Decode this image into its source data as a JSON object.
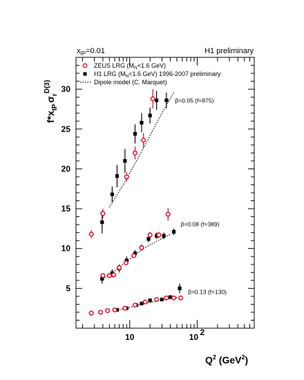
{
  "chart_data": {
    "type": "scatter",
    "header_left": "x_IP=0.01",
    "header_left_main": "x",
    "header_left_sub": "IP",
    "header_left_rest": "=0.01",
    "header_right": "H1 preliminary",
    "xlabel": "Q² (GeV²)",
    "xlabel_main": "Q",
    "xlabel_units_open": " (GeV",
    "xlabel_units_close": ")",
    "xlabel_sup": "2",
    "ylabel": "f*x_IP σ_r^D(3)",
    "ylabel_f": "f*x",
    "ylabel_sub": "IP",
    "ylabel_sigma": "σ",
    "ylabel_sub2": "r",
    "ylabel_sup": "D(3)",
    "x_scale": "log",
    "xlim": [
      1.6,
      700
    ],
    "ylim": [
      0,
      34
    ],
    "x_tick_labels": [
      "10",
      "10"
    ],
    "x_tick_sup": "2",
    "y_ticks": [
      5,
      10,
      15,
      20,
      25,
      30
    ],
    "grid": false,
    "legend_position": "top-left",
    "legend": [
      {
        "label": "ZEUS LRG (M_N<1.6 GeV)",
        "label_main": "ZEUS LRG (M",
        "label_sub": "N",
        "label_rest": "<1.6 GeV)",
        "marker": "open-circle",
        "color": "#e8001c"
      },
      {
        "label": "H1 LRG (M_N<1.6 GeV) 1996-2007 preliminary",
        "label_main": "H1 LRG (M",
        "label_sub": "N",
        "label_rest": "<1.6 GeV) 1996-2007 preliminary",
        "marker": "filled-square",
        "color": "#000000"
      },
      {
        "label": "Dipole model (C. Marquet)",
        "marker": "dotted-line",
        "color": "#000000"
      }
    ],
    "annotations": [
      {
        "text": "β=0.05 (f=875)",
        "x": 47,
        "y": 28.3
      },
      {
        "text": "β=0.08 (f=389)",
        "x": 57,
        "y": 12.8
      },
      {
        "text": "β=0.13 (f=130)",
        "x": 73,
        "y": 4.3
      }
    ],
    "series": [
      {
        "name": "ZEUS LRG (M_N<1.6 GeV)",
        "group": "β=0.05",
        "marker": "open-circle",
        "color": "#e8001c",
        "points": [
          {
            "x": 2.7,
            "y": 11.8,
            "err": 0.5
          },
          {
            "x": 4.0,
            "y": 14.4,
            "err": 0.6
          },
          {
            "x": 9.0,
            "y": 19.0,
            "err": 0.6
          },
          {
            "x": 12.0,
            "y": 22.0,
            "err": 0.8
          },
          {
            "x": 16.0,
            "y": 23.6,
            "err": 0.9
          },
          {
            "x": 22.0,
            "y": 28.8,
            "err": 1.2
          }
        ]
      },
      {
        "name": "H1 LRG (M_N<1.6 GeV) 1996-2007 preliminary",
        "group": "β=0.05",
        "marker": "filled-square",
        "color": "#000000",
        "points": [
          {
            "x": 3.9,
            "y": 13.3,
            "err": 1.4
          },
          {
            "x": 5.5,
            "y": 16.8,
            "err": 1.0
          },
          {
            "x": 6.5,
            "y": 19.1,
            "err": 1.4
          },
          {
            "x": 8.5,
            "y": 21.0,
            "err": 1.5
          },
          {
            "x": 12.0,
            "y": 24.4,
            "err": 1.2
          },
          {
            "x": 15.0,
            "y": 25.8,
            "err": 1.2
          },
          {
            "x": 20.0,
            "y": 26.7,
            "err": 1.0
          },
          {
            "x": 25.0,
            "y": 28.6,
            "err": 1.2
          },
          {
            "x": 35.0,
            "y": 28.6,
            "err": 1.0
          }
        ]
      },
      {
        "name": "Dipole model (C. Marquet)",
        "group": "β=0.05",
        "marker": "dotted-line",
        "color": "#000000",
        "points": [
          {
            "x": 5.0,
            "y": 15.2
          },
          {
            "x": 8.0,
            "y": 18.0
          },
          {
            "x": 13.0,
            "y": 21.2
          },
          {
            "x": 20.0,
            "y": 24.2
          },
          {
            "x": 30.0,
            "y": 27.0
          },
          {
            "x": 45.0,
            "y": 29.6
          }
        ]
      },
      {
        "name": "ZEUS LRG (M_N<1.6 GeV)",
        "group": "β=0.08",
        "marker": "open-circle",
        "color": "#e8001c",
        "points": [
          {
            "x": 4.0,
            "y": 6.6,
            "err": 0.3
          },
          {
            "x": 5.0,
            "y": 6.6,
            "err": 0.3
          },
          {
            "x": 5.8,
            "y": 6.7,
            "err": 0.3
          },
          {
            "x": 7.0,
            "y": 7.6,
            "err": 0.3
          },
          {
            "x": 8.8,
            "y": 8.2,
            "err": 0.3
          },
          {
            "x": 11.5,
            "y": 9.1,
            "err": 0.3
          },
          {
            "x": 15.0,
            "y": 10.1,
            "err": 0.3
          },
          {
            "x": 20.0,
            "y": 11.7,
            "err": 0.4
          },
          {
            "x": 27.0,
            "y": 11.7,
            "err": 0.4
          },
          {
            "x": 37.0,
            "y": 14.3,
            "err": 0.8
          }
        ]
      },
      {
        "name": "H1 LRG (M_N<1.6 GeV) 1996-2007 preliminary",
        "group": "β=0.08",
        "marker": "filled-square",
        "color": "#000000",
        "points": [
          {
            "x": 3.9,
            "y": 6.2,
            "err": 0.6
          },
          {
            "x": 5.5,
            "y": 6.9,
            "err": 0.5
          },
          {
            "x": 7.0,
            "y": 7.5,
            "err": 0.5
          },
          {
            "x": 9.0,
            "y": 8.5,
            "err": 0.5
          },
          {
            "x": 12.0,
            "y": 9.4,
            "err": 0.4
          },
          {
            "x": 15.0,
            "y": 10.1,
            "err": 0.4
          },
          {
            "x": 19.0,
            "y": 11.2,
            "err": 0.4
          },
          {
            "x": 25.0,
            "y": 11.6,
            "err": 0.4
          },
          {
            "x": 32.0,
            "y": 11.6,
            "err": 0.4
          },
          {
            "x": 45.0,
            "y": 12.1,
            "err": 0.4
          }
        ]
      },
      {
        "name": "Dipole model (C. Marquet)",
        "group": "β=0.08",
        "marker": "dotted-line",
        "color": "#000000",
        "points": [
          {
            "x": 3.7,
            "y": 6.0
          },
          {
            "x": 6.0,
            "y": 7.2
          },
          {
            "x": 10.0,
            "y": 8.7
          },
          {
            "x": 16.0,
            "y": 10.0
          },
          {
            "x": 25.0,
            "y": 10.9
          },
          {
            "x": 40.0,
            "y": 11.8
          }
        ]
      },
      {
        "name": "ZEUS LRG (M_N<1.6 GeV)",
        "group": "β=0.13",
        "marker": "open-circle",
        "color": "#e8001c",
        "points": [
          {
            "x": 2.7,
            "y": 1.9,
            "err": 0.1
          },
          {
            "x": 3.7,
            "y": 2.0,
            "err": 0.1
          },
          {
            "x": 4.7,
            "y": 2.2,
            "err": 0.1
          },
          {
            "x": 6.0,
            "y": 2.3,
            "err": 0.1
          },
          {
            "x": 8.5,
            "y": 2.5,
            "err": 0.1
          },
          {
            "x": 12.0,
            "y": 2.9,
            "err": 0.1
          },
          {
            "x": 17.0,
            "y": 3.3,
            "err": 0.1
          },
          {
            "x": 25.0,
            "y": 3.6,
            "err": 0.1
          },
          {
            "x": 35.0,
            "y": 3.8,
            "err": 0.1
          },
          {
            "x": 45.0,
            "y": 3.8,
            "err": 0.1
          },
          {
            "x": 57.0,
            "y": 3.8,
            "err": 0.1
          }
        ]
      },
      {
        "name": "H1 LRG (M_N<1.6 GeV) 1996-2007 preliminary",
        "group": "β=0.13",
        "marker": "filled-square",
        "color": "#000000",
        "points": [
          {
            "x": 6.5,
            "y": 2.3,
            "err": 0.15
          },
          {
            "x": 9.0,
            "y": 2.5,
            "err": 0.15
          },
          {
            "x": 12.5,
            "y": 2.9,
            "err": 0.15
          },
          {
            "x": 15.0,
            "y": 3.1,
            "err": 0.15
          },
          {
            "x": 20.0,
            "y": 3.5,
            "err": 0.15
          },
          {
            "x": 30.0,
            "y": 3.6,
            "err": 0.15
          },
          {
            "x": 40.0,
            "y": 3.9,
            "err": 0.15
          },
          {
            "x": 55.0,
            "y": 5.0,
            "err": 0.6
          }
        ]
      },
      {
        "name": "Dipole model (C. Marquet)",
        "group": "β=0.13",
        "marker": "dotted-line",
        "color": "#000000",
        "points": [
          {
            "x": 6.0,
            "y": 2.2
          },
          {
            "x": 10.0,
            "y": 2.6
          },
          {
            "x": 15.0,
            "y": 3.0
          },
          {
            "x": 25.0,
            "y": 3.4
          },
          {
            "x": 40.0,
            "y": 3.7
          },
          {
            "x": 60.0,
            "y": 4.0
          }
        ]
      }
    ]
  }
}
